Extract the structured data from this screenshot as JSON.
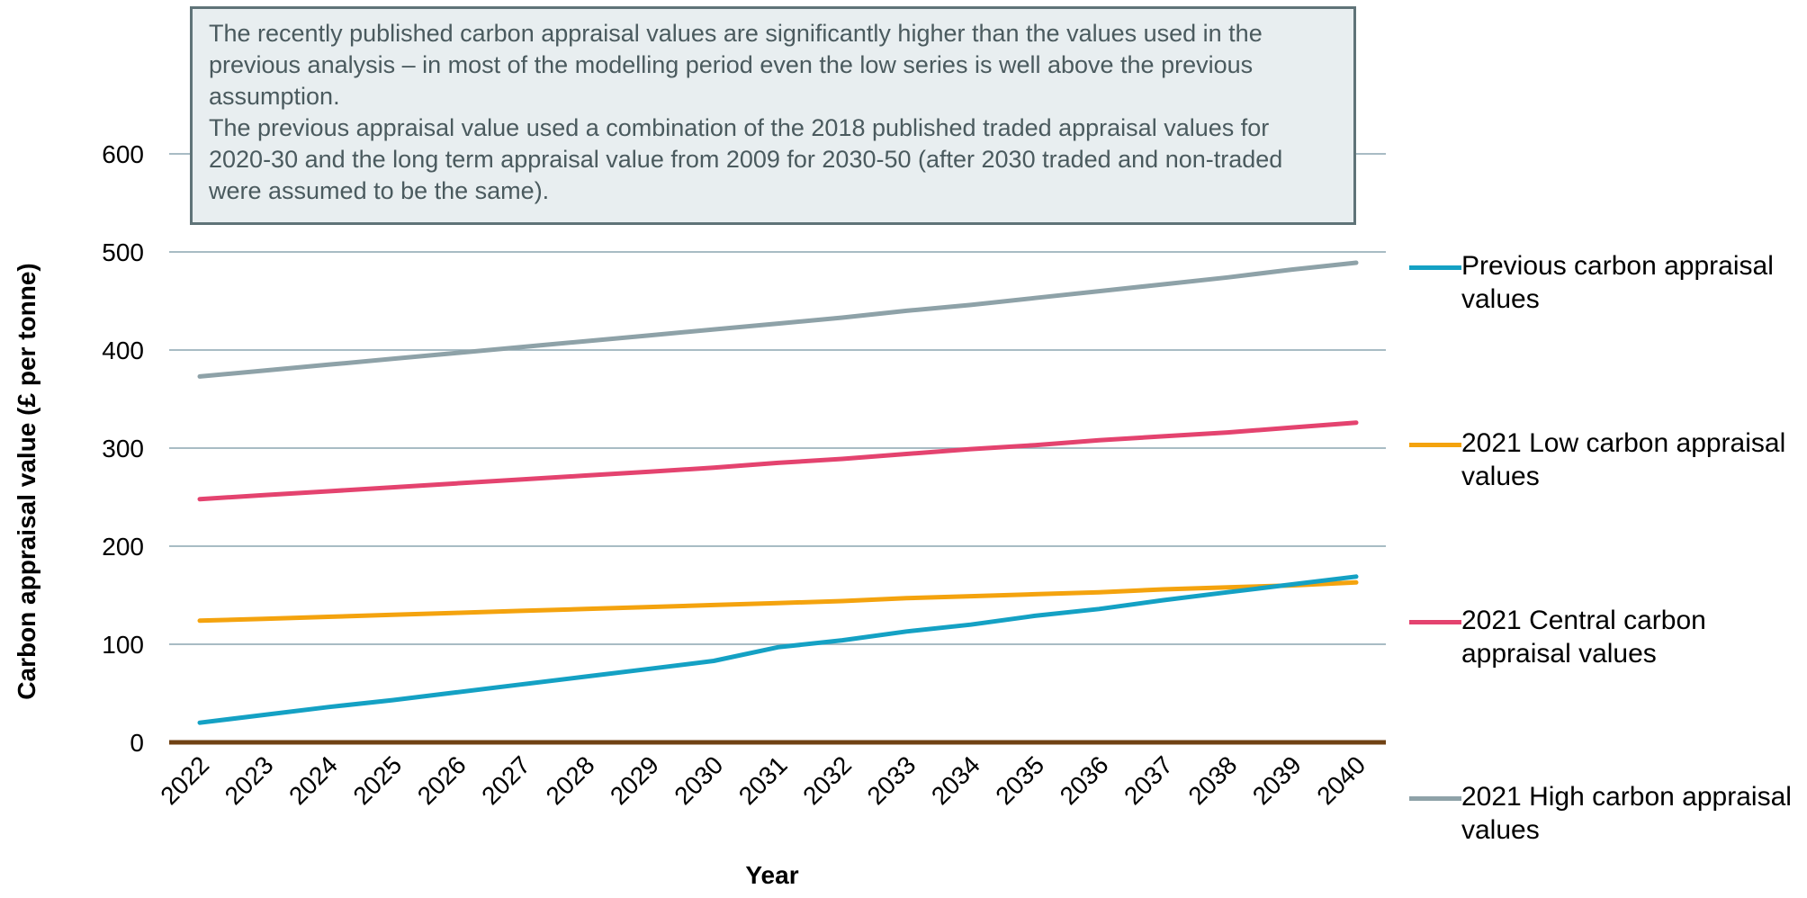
{
  "annotation": {
    "paragraph1": "The recently published carbon appraisal values are significantly higher than the values used in the previous analysis – in most of the modelling period even the low series is well above the previous assumption.",
    "paragraph2": "The previous appraisal value used a combination of the 2018 published traded appraisal values for 2020-30 and the long term appraisal value from 2009 for 2030-50 (after 2030 traded and non-traded were assumed to be the same)."
  },
  "chart_data": {
    "type": "line",
    "title": "",
    "xlabel": "Year",
    "ylabel": "Carbon appraisal value (£ per tonne)",
    "ylim": [
      0,
      600
    ],
    "yticks": [
      0,
      100,
      200,
      300,
      400,
      500,
      600
    ],
    "grid": "horizontal",
    "legend_position": "right",
    "categories": [
      "2022",
      "2023",
      "2024",
      "2025",
      "2026",
      "2027",
      "2028",
      "2029",
      "2030",
      "2031",
      "2032",
      "2033",
      "2034",
      "2035",
      "2036",
      "2037",
      "2038",
      "2039",
      "2040"
    ],
    "series": [
      {
        "name": "Previous carbon appraisal values",
        "color": "#14a1c4",
        "values": [
          20,
          28,
          36,
          43,
          51,
          59,
          67,
          75,
          83,
          97,
          104,
          113,
          120,
          129,
          136,
          145,
          153,
          161,
          169
        ]
      },
      {
        "name": "2021 Low carbon appraisal values",
        "color": "#f4a30e",
        "values": [
          124,
          126,
          128,
          130,
          132,
          134,
          136,
          138,
          140,
          142,
          144,
          147,
          149,
          151,
          153,
          156,
          158,
          160,
          163
        ]
      },
      {
        "name": "2021 Central carbon appraisal values",
        "color": "#e4436f",
        "values": [
          248,
          252,
          256,
          260,
          264,
          268,
          272,
          276,
          280,
          285,
          289,
          294,
          299,
          303,
          308,
          312,
          316,
          321,
          326
        ]
      },
      {
        "name": "2021 High carbon appraisal values",
        "color": "#8ea2a8",
        "values": [
          373,
          379,
          385,
          391,
          397,
          403,
          409,
          415,
          421,
          427,
          433,
          440,
          446,
          453,
          460,
          467,
          474,
          482,
          489
        ]
      }
    ],
    "gridline_color": "#8ba6b0",
    "baseline_color": "#704214"
  }
}
